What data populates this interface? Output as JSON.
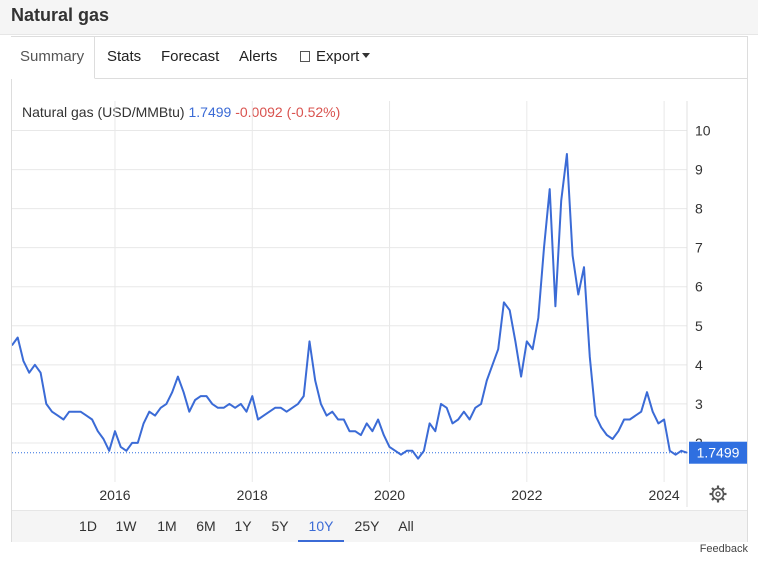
{
  "page": {
    "title": "Natural gas",
    "feedback": "Feedback"
  },
  "tabs": [
    {
      "label": "Summary",
      "active": true
    },
    {
      "label": "Stats",
      "active": false
    },
    {
      "label": "Forecast",
      "active": false
    },
    {
      "label": "Alerts",
      "active": false
    },
    {
      "label": "Export",
      "active": false,
      "icon": "file-icon",
      "dropdown": true
    }
  ],
  "legend": {
    "name": "Natural gas (USD/MMBtu)",
    "value": "1.7499",
    "change": "-0.0092 (-0.52%)"
  },
  "ranges": [
    {
      "label": "1D",
      "active": false
    },
    {
      "label": "1W",
      "active": false
    },
    {
      "label": "1M",
      "active": false
    },
    {
      "label": "6M",
      "active": false
    },
    {
      "label": "1Y",
      "active": false
    },
    {
      "label": "5Y",
      "active": false
    },
    {
      "label": "10Y",
      "active": true
    },
    {
      "label": "25Y",
      "active": false
    },
    {
      "label": "All",
      "active": false
    }
  ],
  "colors": {
    "line": "#3b6bd6",
    "badge": "#2f6fe0",
    "change": "#d9534f",
    "grid": "#e8e8e8"
  },
  "chart_data": {
    "type": "line",
    "title": "",
    "xlabel": "",
    "ylabel": "",
    "x_ticks": [
      "2016",
      "2018",
      "2020",
      "2022",
      "2024"
    ],
    "y_ticks": [
      10,
      9,
      8,
      7,
      6,
      5,
      4,
      3,
      2
    ],
    "xlim": [
      "2014-07",
      "2024-05"
    ],
    "ylim": [
      1.0,
      10.5
    ],
    "current_value": 1.7499,
    "current_label": "1.7499",
    "grid": true,
    "series": [
      {
        "color": "#3b6bd6",
        "points": [
          [
            "2014-07",
            4.5
          ],
          [
            "2014-08",
            4.7
          ],
          [
            "2014-09",
            4.1
          ],
          [
            "2014-10",
            3.8
          ],
          [
            "2014-11",
            4.0
          ],
          [
            "2014-12",
            3.8
          ],
          [
            "2015-01",
            3.0
          ],
          [
            "2015-02",
            2.8
          ],
          [
            "2015-03",
            2.7
          ],
          [
            "2015-04",
            2.6
          ],
          [
            "2015-05",
            2.8
          ],
          [
            "2015-06",
            2.8
          ],
          [
            "2015-07",
            2.8
          ],
          [
            "2015-08",
            2.7
          ],
          [
            "2015-09",
            2.6
          ],
          [
            "2015-10",
            2.3
          ],
          [
            "2015-11",
            2.1
          ],
          [
            "2015-12",
            1.8
          ],
          [
            "2016-01",
            2.3
          ],
          [
            "2016-02",
            1.9
          ],
          [
            "2016-03",
            1.8
          ],
          [
            "2016-04",
            2.0
          ],
          [
            "2016-05",
            2.0
          ],
          [
            "2016-06",
            2.5
          ],
          [
            "2016-07",
            2.8
          ],
          [
            "2016-08",
            2.7
          ],
          [
            "2016-09",
            2.9
          ],
          [
            "2016-10",
            3.0
          ],
          [
            "2016-11",
            3.3
          ],
          [
            "2016-12",
            3.7
          ],
          [
            "2017-01",
            3.3
          ],
          [
            "2017-02",
            2.8
          ],
          [
            "2017-03",
            3.1
          ],
          [
            "2017-04",
            3.2
          ],
          [
            "2017-05",
            3.2
          ],
          [
            "2017-06",
            3.0
          ],
          [
            "2017-07",
            2.9
          ],
          [
            "2017-08",
            2.9
          ],
          [
            "2017-09",
            3.0
          ],
          [
            "2017-10",
            2.9
          ],
          [
            "2017-11",
            3.0
          ],
          [
            "2017-12",
            2.8
          ],
          [
            "2018-01",
            3.2
          ],
          [
            "2018-02",
            2.6
          ],
          [
            "2018-03",
            2.7
          ],
          [
            "2018-04",
            2.8
          ],
          [
            "2018-05",
            2.9
          ],
          [
            "2018-06",
            2.9
          ],
          [
            "2018-07",
            2.8
          ],
          [
            "2018-08",
            2.9
          ],
          [
            "2018-09",
            3.0
          ],
          [
            "2018-10",
            3.2
          ],
          [
            "2018-11",
            4.6
          ],
          [
            "2018-12",
            3.6
          ],
          [
            "2019-01",
            3.0
          ],
          [
            "2019-02",
            2.7
          ],
          [
            "2019-03",
            2.8
          ],
          [
            "2019-04",
            2.6
          ],
          [
            "2019-05",
            2.6
          ],
          [
            "2019-06",
            2.3
          ],
          [
            "2019-07",
            2.3
          ],
          [
            "2019-08",
            2.2
          ],
          [
            "2019-09",
            2.5
          ],
          [
            "2019-10",
            2.3
          ],
          [
            "2019-11",
            2.6
          ],
          [
            "2019-12",
            2.2
          ],
          [
            "2020-01",
            1.9
          ],
          [
            "2020-02",
            1.8
          ],
          [
            "2020-03",
            1.7
          ],
          [
            "2020-04",
            1.8
          ],
          [
            "2020-05",
            1.8
          ],
          [
            "2020-06",
            1.6
          ],
          [
            "2020-07",
            1.8
          ],
          [
            "2020-08",
            2.5
          ],
          [
            "2020-09",
            2.3
          ],
          [
            "2020-10",
            3.0
          ],
          [
            "2020-11",
            2.9
          ],
          [
            "2020-12",
            2.5
          ],
          [
            "2021-01",
            2.6
          ],
          [
            "2021-02",
            2.8
          ],
          [
            "2021-03",
            2.6
          ],
          [
            "2021-04",
            2.9
          ],
          [
            "2021-05",
            3.0
          ],
          [
            "2021-06",
            3.6
          ],
          [
            "2021-07",
            4.0
          ],
          [
            "2021-08",
            4.4
          ],
          [
            "2021-09",
            5.6
          ],
          [
            "2021-10",
            5.4
          ],
          [
            "2021-11",
            4.6
          ],
          [
            "2021-12",
            3.7
          ],
          [
            "2022-01",
            4.6
          ],
          [
            "2022-02",
            4.4
          ],
          [
            "2022-03",
            5.2
          ],
          [
            "2022-04",
            7.0
          ],
          [
            "2022-05",
            8.5
          ],
          [
            "2022-06",
            5.5
          ],
          [
            "2022-07",
            8.2
          ],
          [
            "2022-08",
            9.4
          ],
          [
            "2022-09",
            6.8
          ],
          [
            "2022-10",
            5.8
          ],
          [
            "2022-11",
            6.5
          ],
          [
            "2022-12",
            4.2
          ],
          [
            "2023-01",
            2.7
          ],
          [
            "2023-02",
            2.4
          ],
          [
            "2023-03",
            2.2
          ],
          [
            "2023-04",
            2.1
          ],
          [
            "2023-05",
            2.3
          ],
          [
            "2023-06",
            2.6
          ],
          [
            "2023-07",
            2.6
          ],
          [
            "2023-08",
            2.7
          ],
          [
            "2023-09",
            2.8
          ],
          [
            "2023-10",
            3.3
          ],
          [
            "2023-11",
            2.8
          ],
          [
            "2023-12",
            2.5
          ],
          [
            "2024-01",
            2.6
          ],
          [
            "2024-02",
            1.8
          ],
          [
            "2024-03",
            1.7
          ],
          [
            "2024-04",
            1.8
          ],
          [
            "2024-05",
            1.75
          ]
        ]
      }
    ]
  }
}
